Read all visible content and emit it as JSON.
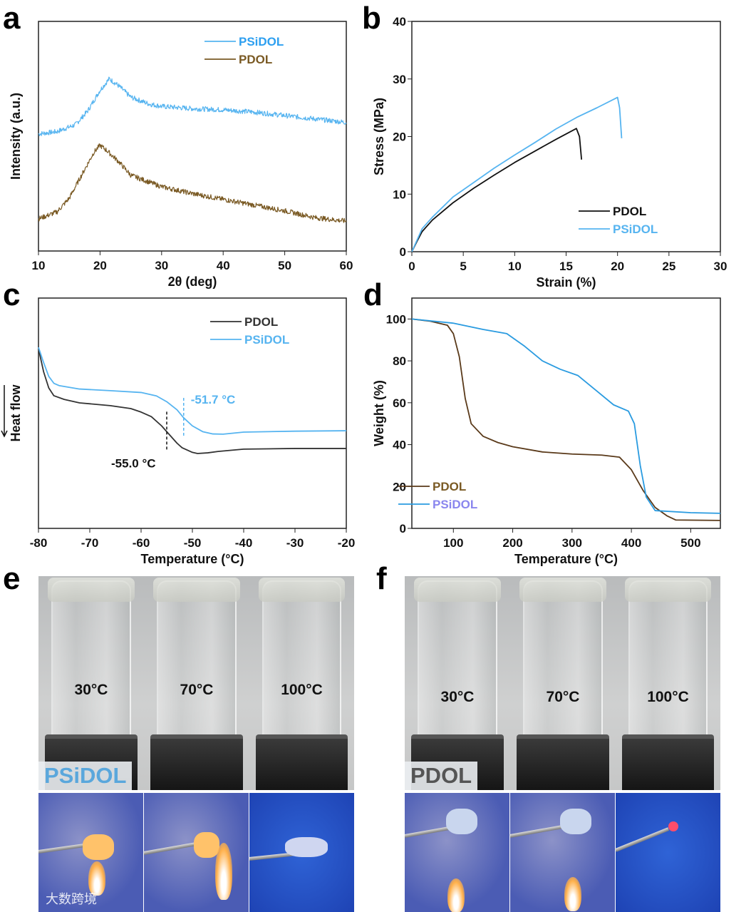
{
  "panel_labels": {
    "a": "a",
    "b": "b",
    "c": "c",
    "d": "d",
    "e": "e",
    "f": "f"
  },
  "chart_data": [
    {
      "id": "a",
      "type": "line",
      "xlabel": "2θ (deg)",
      "ylabel": "Intensity (a.u.)",
      "xlim": [
        10,
        60
      ],
      "ylim": [
        0,
        100
      ],
      "xticks": [
        10,
        20,
        30,
        40,
        50,
        60
      ],
      "yticks": [],
      "series": [
        {
          "name": "PSiDOL",
          "color": "#56b4f0",
          "label_color": "#2d9ff0",
          "x": [
            10,
            13,
            16,
            18,
            20,
            21.5,
            23,
            25,
            28,
            30,
            35,
            40,
            45,
            50,
            55,
            60
          ],
          "y": [
            51,
            52,
            55,
            61,
            70,
            75,
            72,
            67,
            64,
            63,
            62,
            61.5,
            60.5,
            59,
            57.5,
            56
          ]
        },
        {
          "name": "PDOL",
          "color": "#7a5a24",
          "label_color": "#7a5a24",
          "x": [
            10,
            13,
            15,
            17,
            19,
            20,
            21,
            23,
            25,
            28,
            30,
            35,
            40,
            45,
            50,
            55,
            60
          ],
          "y": [
            14,
            17,
            23,
            33,
            43,
            46,
            44,
            39,
            33,
            30,
            28,
            25,
            22.5,
            20,
            17.5,
            14.5,
            13
          ]
        }
      ],
      "legend": "top-right"
    },
    {
      "id": "b",
      "type": "line",
      "xlabel": "Strain (%)",
      "ylabel": "Stress (MPa)",
      "xlim": [
        0,
        30
      ],
      "ylim": [
        0,
        40
      ],
      "xticks": [
        0,
        5,
        10,
        15,
        20,
        25,
        30
      ],
      "yticks": [
        0,
        10,
        20,
        30,
        40
      ],
      "series": [
        {
          "name": "PDOL",
          "color": "#111111",
          "label_color": "#111111",
          "x": [
            0,
            0.5,
            1,
            2,
            4,
            6,
            8,
            10,
            12,
            14,
            16,
            16.3,
            16.5
          ],
          "y": [
            0,
            1.8,
            3.5,
            5.5,
            8.5,
            11,
            13.3,
            15.5,
            17.5,
            19.5,
            21.4,
            20,
            16
          ]
        },
        {
          "name": "PSiDOL",
          "color": "#56b4f0",
          "label_color": "#56b4f0",
          "x": [
            0,
            0.5,
            1,
            2,
            4,
            6,
            8,
            10,
            12,
            14,
            16,
            18,
            20,
            20.2,
            20.4
          ],
          "y": [
            0,
            2,
            4,
            6,
            9.5,
            12,
            14.5,
            16.8,
            19,
            21.3,
            23.3,
            25,
            26.8,
            25,
            19.7
          ]
        }
      ],
      "legend": "bottom-right"
    },
    {
      "id": "c",
      "type": "line",
      "xlabel": "Temperature (°C)",
      "ylabel": "Heat flow",
      "xlim": [
        -80,
        -20
      ],
      "ylim": [
        0,
        100
      ],
      "xticks": [
        -80,
        -70,
        -60,
        -50,
        -40,
        -30,
        -20
      ],
      "yticks": [],
      "series": [
        {
          "name": "PDOL",
          "color": "#333333",
          "label_color": "#333333",
          "x": [
            -80,
            -79,
            -78,
            -77,
            -75,
            -72,
            -66,
            -62,
            -60,
            -58,
            -56,
            -55,
            -53,
            -52,
            -50,
            -49,
            -47,
            -45,
            -40,
            -30,
            -20
          ],
          "y": [
            78,
            68,
            61,
            57.6,
            56,
            54.5,
            53.3,
            52,
            50.5,
            48.5,
            44.5,
            42,
            37,
            35,
            33,
            32.5,
            32.8,
            33.4,
            34.4,
            34.7,
            34.7
          ]
        },
        {
          "name": "PSiDOL",
          "color": "#56b4f0",
          "label_color": "#56b4f0",
          "x": [
            -80,
            -79,
            -78,
            -77,
            -76,
            -72,
            -66,
            -60,
            -57,
            -55,
            -53,
            -51.7,
            -50,
            -48,
            -46,
            -44,
            -40,
            -30,
            -20
          ],
          "y": [
            78.6,
            72,
            66,
            63,
            62,
            60.5,
            59.8,
            59,
            57.5,
            55,
            51.5,
            48,
            44.5,
            42,
            41,
            40.9,
            41.8,
            42.2,
            42.4
          ]
        }
      ],
      "annotations": [
        {
          "text": "-55.0 °C",
          "x": -55.0,
          "color": "#111111",
          "series": "PDOL"
        },
        {
          "text": "-51.7 °C",
          "x": -51.7,
          "color": "#56b4f0",
          "series": "PSiDOL"
        }
      ],
      "legend": "top-right"
    },
    {
      "id": "d",
      "type": "line",
      "xlabel": "Temperature (°C)",
      "ylabel": "Weight (%)",
      "xlim": [
        30,
        550
      ],
      "ylim": [
        0,
        110
      ],
      "xticks": [
        100,
        200,
        300,
        400,
        500
      ],
      "yticks": [
        0,
        20,
        40,
        60,
        80,
        100
      ],
      "series": [
        {
          "name": "PDOL",
          "color": "#5a3a1a",
          "label_color": "#7a5a24",
          "x": [
            30,
            60,
            90,
            100,
            110,
            120,
            130,
            150,
            175,
            200,
            250,
            300,
            350,
            380,
            400,
            420,
            440,
            460,
            475,
            550
          ],
          "y": [
            100,
            99,
            97,
            93,
            82,
            62,
            50,
            44,
            41,
            39,
            36.5,
            35.5,
            35,
            34,
            28,
            18,
            10,
            6,
            4,
            3.8
          ]
        },
        {
          "name": "PSiDOL",
          "color": "#2a9be0",
          "label_color": "#8a86ee",
          "x": [
            30,
            100,
            150,
            190,
            220,
            250,
            280,
            310,
            340,
            370,
            395,
            405,
            415,
            425,
            440,
            500,
            550
          ],
          "y": [
            100,
            98,
            95,
            93,
            87,
            80,
            76,
            73,
            66,
            59,
            56,
            50,
            30,
            15,
            8.5,
            7.5,
            7.2
          ]
        }
      ],
      "legend": "bottom-left"
    }
  ],
  "panel_e": {
    "temps": [
      "30°C",
      "70°C",
      "100°C"
    ],
    "tag": "PSiDOL",
    "tag_color": "#5aa7dc"
  },
  "panel_f": {
    "temps": [
      "30°C",
      "70°C",
      "100°C"
    ],
    "tag": "PDOL",
    "tag_color": "#555555"
  },
  "watermark": "大数跨境"
}
